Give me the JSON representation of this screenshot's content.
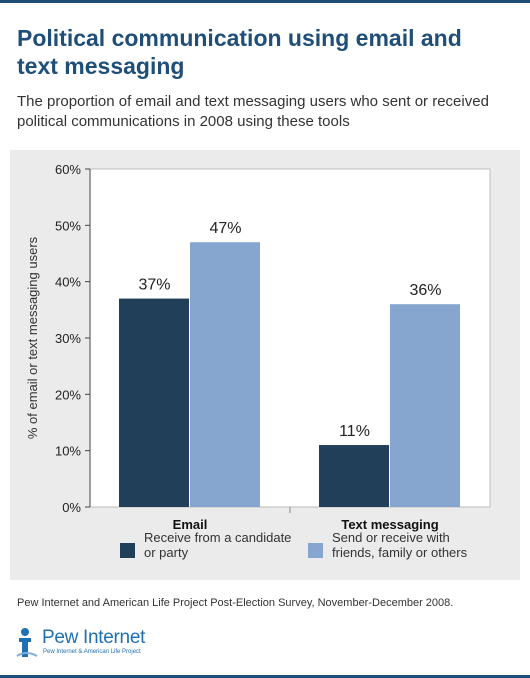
{
  "header": {
    "title_line1": "Political communication using email and",
    "title_line2": "text messaging",
    "subtitle_line1": "The proportion of email and text messaging users who sent or received",
    "subtitle_line2": "political communications in 2008 using these tools"
  },
  "chart_data": {
    "type": "bar",
    "categories": [
      "Email",
      "Text messaging"
    ],
    "series": [
      {
        "name": "Receive from a candidate or party",
        "legend_lines": [
          "Receive from a candidate",
          "or party"
        ],
        "values": [
          37,
          11
        ],
        "color": "#223f5a"
      },
      {
        "name": "Send or receive with friends, family or others",
        "legend_lines": [
          "Send or receive with",
          "friends, family or others"
        ],
        "values": [
          47,
          36
        ],
        "color": "#86a5cf"
      }
    ],
    "data_labels": [
      [
        "37%",
        "11%"
      ],
      [
        "47%",
        "36%"
      ]
    ],
    "ylabel": "% of email or text messaging users",
    "ylim": [
      0,
      60
    ],
    "yticks": [
      0,
      10,
      20,
      30,
      40,
      50,
      60
    ],
    "ytick_labels": [
      "0%",
      "10%",
      "20%",
      "30%",
      "40%",
      "50%",
      "60%"
    ],
    "grid": false,
    "legend_position": "bottom",
    "plot_background": "#ffffff",
    "panel_background": "#ebebeb"
  },
  "footer": {
    "source": "Pew Internet and American Life Project Post-Election Survey, November-December 2008.",
    "logo_name": "Pew Internet",
    "logo_tagline": "Pew Internet & American Life Project"
  },
  "colors": {
    "brand": "#1f4e79",
    "logo": "#1f6fb3"
  }
}
